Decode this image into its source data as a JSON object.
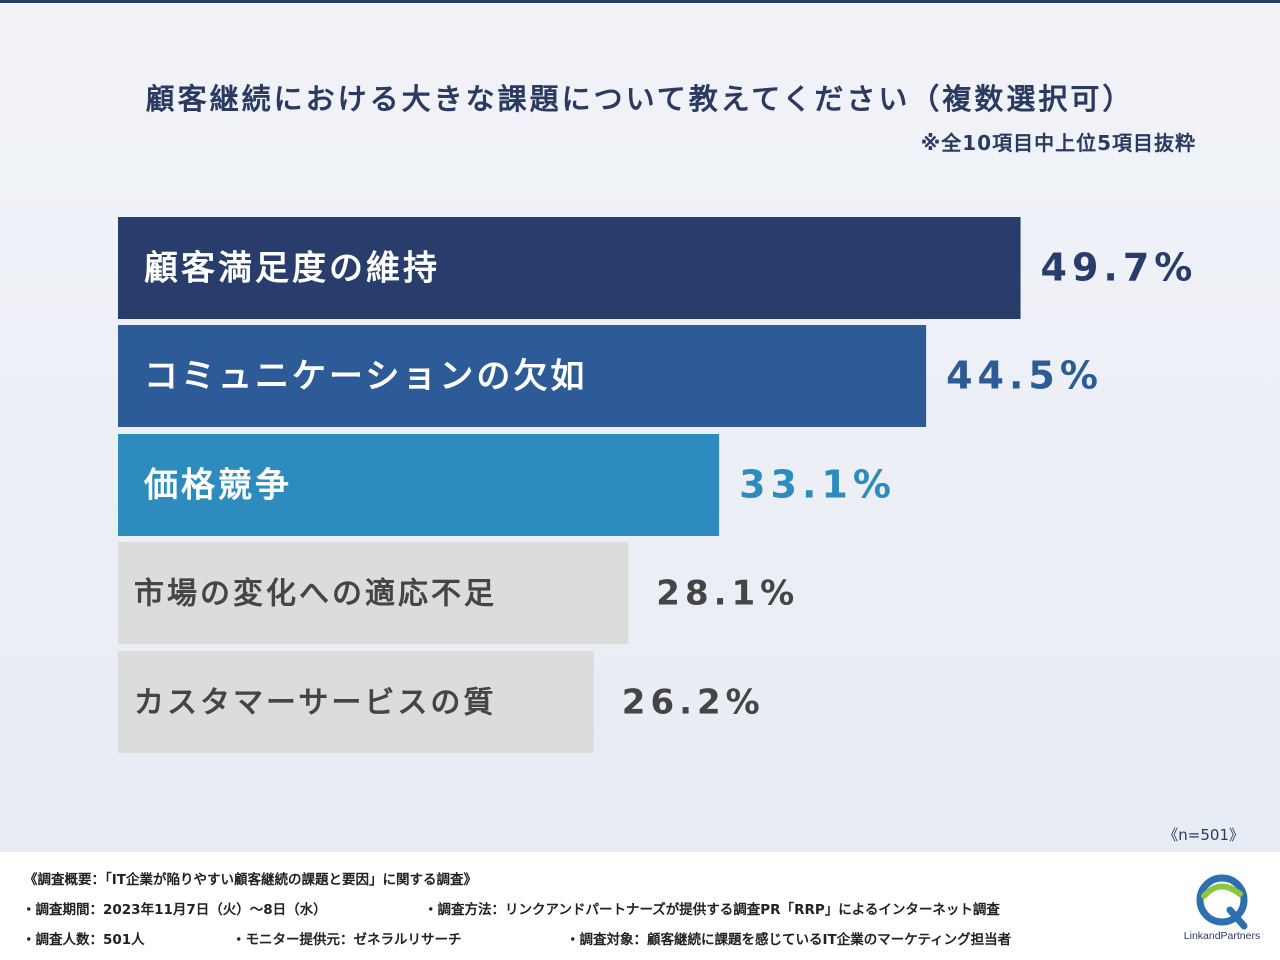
{
  "title": "顧客継続における大きな課題について教えてください（複数選択可）",
  "subtitle": "※全10項目中上位5項目抜粋",
  "chart_data": {
    "type": "bar",
    "orientation": "horizontal",
    "title": "顧客継続における大きな課題について教えてください（複数選択可）",
    "subtitle": "※全10項目中上位5項目抜粋",
    "categories": [
      "顧客満足度の維持",
      "コミュニケーションの欠如",
      "価格競争",
      "市場の変化への適応不足",
      "カスタマーサービスの質"
    ],
    "values": [
      49.7,
      44.5,
      33.1,
      28.1,
      26.2
    ],
    "value_labels": [
      "49.7%",
      "44.5%",
      "33.1%",
      "28.1%",
      "26.2%"
    ],
    "bar_colors": [
      "#283d6b",
      "#2d5b98",
      "#2e8bbd",
      "#dcdcdc",
      "#dcdcdc"
    ],
    "label_colors": [
      "#ffffff",
      "#ffffff",
      "#ffffff",
      "#454545",
      "#454545"
    ],
    "value_colors": [
      "#283d6b",
      "#2d5b98",
      "#2e8bbd",
      "#454545",
      "#454545"
    ],
    "xlim": [
      0,
      55
    ],
    "grid": false
  },
  "n_label": "《n=501》",
  "footer": {
    "line1": "《調査概要：「IT企業が陥りやすい顧客継続の課題と要因」に関する調査》",
    "period": "・調査期間：2023年11月7日（火）〜8日（水）",
    "method": "・調査方法：リンクアンドパートナーズが提供する調査PR「RRP」によるインターネット調査",
    "count": "・調査人数：501人",
    "provider": "・モニター提供元：ゼネラルリサーチ",
    "target": "・調査対象：顧客継続に課題を感じているIT企業のマーケティング担当者",
    "logo_text": "LinkandPartners"
  }
}
